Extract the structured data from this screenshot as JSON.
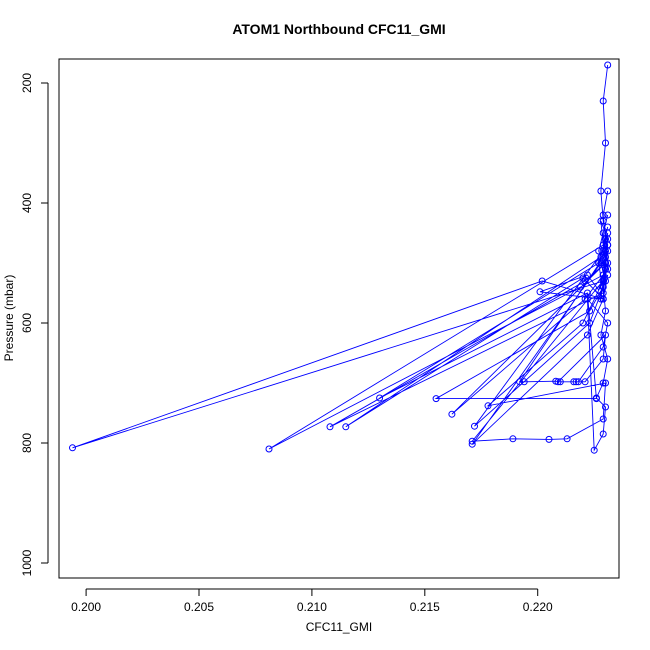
{
  "chart_data": {
    "type": "line",
    "title": "ATOM1 Northbound CFC11_GMI",
    "xlabel": "CFC11_GMI",
    "ylabel": "Pressure (mbar)",
    "xlim": [
      0.1988,
      0.2236
    ],
    "ylim": [
      1025,
      160
    ],
    "y_inverted": true,
    "xticks": [
      0.2,
      0.205,
      0.21,
      0.215,
      0.22
    ],
    "xtick_labels": [
      "0.200",
      "0.205",
      "0.210",
      "0.215",
      "0.220"
    ],
    "yticks": [
      200,
      400,
      600,
      800,
      1000
    ],
    "ytick_labels": [
      "200",
      "400",
      "600",
      "800",
      "1000"
    ],
    "grid": false,
    "color": "#0000ff",
    "markers": "open-circle",
    "series": [
      {
        "x": [
          0.2231,
          0.2229,
          0.223,
          0.2228,
          0.2229,
          0.2231,
          0.223,
          0.2229,
          0.2227,
          0.2222,
          0.2201,
          0.2228,
          0.223,
          0.2229,
          0.2231,
          0.2227,
          0.223,
          0.2229,
          0.1994,
          0.2202,
          0.2229,
          0.223,
          0.2231,
          0.2228,
          0.2229,
          0.2081,
          0.2219,
          0.2229,
          0.223,
          0.2231,
          0.2227,
          0.2229,
          0.2108,
          0.2221,
          0.223,
          0.2229,
          0.2231,
          0.2228,
          0.2115,
          0.222,
          0.2229,
          0.223,
          0.2231,
          0.2227,
          0.213,
          0.2222,
          0.2226,
          0.2155,
          0.2223,
          0.2229,
          0.223,
          0.2162,
          0.2221,
          0.2231,
          0.2229,
          0.2172,
          0.2223,
          0.223,
          0.2228,
          0.2171,
          0.2222,
          0.2229,
          0.2231,
          0.2171,
          0.2189,
          0.2205,
          0.2213,
          0.2229,
          0.223,
          0.2178,
          0.222,
          0.2229,
          0.2231,
          0.2192,
          0.2194,
          0.2208,
          0.221,
          0.2221,
          0.2229,
          0.223,
          0.2209,
          0.2216,
          0.2217,
          0.2218,
          0.2229,
          0.2231,
          0.2222,
          0.2225,
          0.2229,
          0.223,
          0.2226,
          0.2229,
          0.2231,
          0.2228,
          0.223,
          0.2229,
          0.2231,
          0.223,
          0.2229,
          0.2231
        ],
        "y": [
          170,
          230,
          300,
          380,
          430,
          470,
          500,
          520,
          545,
          520,
          548,
          560,
          490,
          450,
          420,
          480,
          510,
          530,
          808,
          530,
          560,
          500,
          460,
          430,
          470,
          810,
          540,
          520,
          480,
          450,
          500,
          550,
          773,
          530,
          500,
          470,
          440,
          490,
          773,
          525,
          560,
          510,
          470,
          500,
          725,
          550,
          726,
          726,
          580,
          540,
          500,
          752,
          560,
          510,
          480,
          772,
          600,
          530,
          500,
          802,
          620,
          560,
          520,
          797,
          793,
          794,
          793,
          760,
          700,
          738,
          600,
          530,
          480,
          698,
          698,
          697,
          698,
          698,
          660,
          620,
          698,
          698,
          698,
          698,
          640,
          600,
          560,
          812,
          785,
          740,
          725,
          700,
          660,
          620,
          580,
          540,
          500,
          460,
          420,
          380
        ]
      }
    ]
  }
}
